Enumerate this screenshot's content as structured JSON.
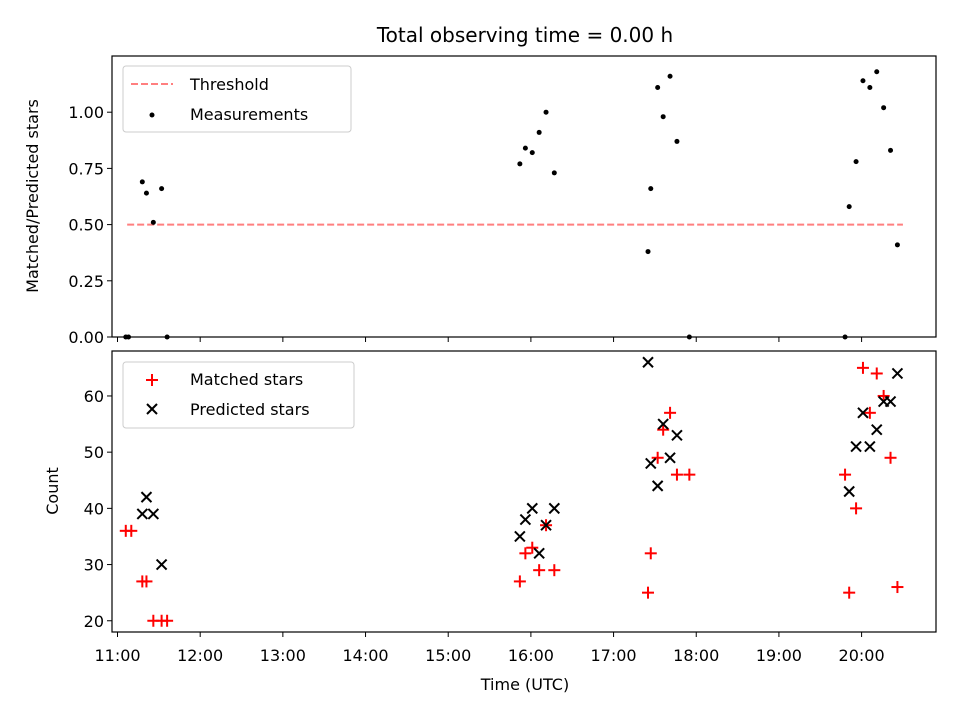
{
  "chart_data": [
    {
      "type": "scatter",
      "title": "Total observing time = 0.00 h",
      "xlabel": "",
      "ylabel": "Matched/Predicted stars",
      "xlim": [
        "10:56",
        "20:54"
      ],
      "ylim": [
        0,
        1.25
      ],
      "yticks": [
        "0.00",
        "0.25",
        "0.50",
        "0.75",
        "1.00"
      ],
      "grid": false,
      "legend_position": "top-left",
      "series": [
        {
          "name": "Threshold",
          "style": "dashed-line",
          "color": "#ff7f7f",
          "x": [
            "11:07",
            "20:30"
          ],
          "y": [
            0.5,
            0.5
          ]
        },
        {
          "name": "Measurements",
          "style": "dot",
          "color": "#000000",
          "x": [
            "11:06",
            "11:08",
            "11:18",
            "11:21",
            "11:26",
            "11:32",
            "11:36",
            "15:52",
            "15:56",
            "16:01",
            "16:06",
            "16:11",
            "16:17",
            "17:25",
            "17:27",
            "17:32",
            "17:36",
            "17:41",
            "17:46",
            "17:55",
            "19:48",
            "19:51",
            "19:56",
            "20:01",
            "20:06",
            "20:11",
            "20:16",
            "20:21",
            "20:26"
          ],
          "y": [
            0.0,
            0.0,
            0.69,
            0.64,
            0.51,
            0.66,
            0.0,
            0.77,
            0.84,
            0.82,
            0.91,
            1.0,
            0.73,
            0.38,
            0.66,
            1.11,
            0.98,
            1.16,
            0.87,
            0.0,
            0.0,
            0.58,
            0.78,
            1.14,
            1.11,
            1.18,
            1.02,
            0.83,
            0.41
          ]
        }
      ]
    },
    {
      "type": "scatter",
      "title": "",
      "xlabel": "Time (UTC)",
      "ylabel": "Count",
      "xlim": [
        "10:56",
        "20:54"
      ],
      "ylim": [
        18,
        68
      ],
      "yticks": [
        "20",
        "30",
        "40",
        "50",
        "60"
      ],
      "xticks": [
        "11:00",
        "12:00",
        "13:00",
        "14:00",
        "15:00",
        "16:00",
        "17:00",
        "18:00",
        "19:00",
        "20:00"
      ],
      "grid": false,
      "legend_position": "top-left",
      "series": [
        {
          "name": "Matched stars",
          "marker": "plus",
          "color": "#ff0000",
          "x": [
            "11:06",
            "11:10",
            "11:18",
            "11:21",
            "11:26",
            "11:32",
            "11:36",
            "15:52",
            "15:56",
            "16:01",
            "16:06",
            "16:11",
            "16:17",
            "17:25",
            "17:27",
            "17:32",
            "17:36",
            "17:41",
            "17:46",
            "17:55",
            "19:48",
            "19:51",
            "19:56",
            "20:01",
            "20:06",
            "20:11",
            "20:16",
            "20:21",
            "20:26"
          ],
          "y": [
            36,
            36,
            27,
            27,
            20,
            20,
            20,
            27,
            32,
            33,
            29,
            37,
            29,
            25,
            32,
            49,
            54,
            57,
            46,
            46,
            46,
            25,
            40,
            65,
            57,
            64,
            60,
            49,
            26
          ]
        },
        {
          "name": "Predicted stars",
          "marker": "x",
          "color": "#000000",
          "x": [
            "11:18",
            "11:21",
            "11:26",
            "11:32",
            "15:52",
            "15:56",
            "16:01",
            "16:06",
            "16:11",
            "16:17",
            "17:25",
            "17:27",
            "17:32",
            "17:36",
            "17:41",
            "17:46",
            "19:51",
            "19:56",
            "20:01",
            "20:06",
            "20:11",
            "20:16",
            "20:21",
            "20:26"
          ],
          "y": [
            39,
            42,
            39,
            30,
            35,
            38,
            40,
            32,
            37,
            40,
            66,
            48,
            44,
            55,
            49,
            53,
            43,
            51,
            57,
            51,
            54,
            59,
            59,
            64
          ]
        }
      ]
    }
  ]
}
